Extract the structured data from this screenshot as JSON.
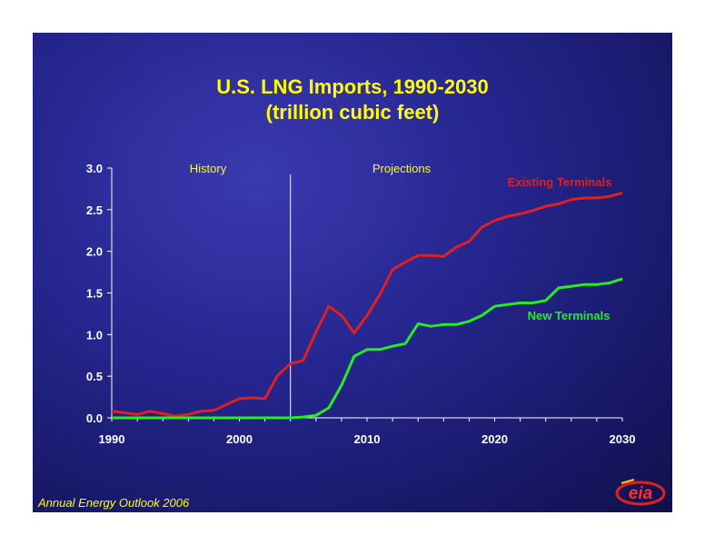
{
  "slide": {
    "title_line1": "U.S. LNG Imports, 1990-2030",
    "title_line2": "(trillion cubic feet)",
    "footer": "Annual Energy Outlook 2006",
    "logo_text": "eia",
    "background_color": "#1f1f7a",
    "title_color": "#ffff00"
  },
  "chart_data": {
    "type": "line",
    "title": "U.S. LNG Imports, 1990-2030",
    "subtitle": "(trillion cubic feet)",
    "xlabel": "",
    "ylabel": "",
    "xlim": [
      1990,
      2030
    ],
    "ylim": [
      0,
      3.0
    ],
    "x_ticks": [
      "1990",
      "2000",
      "2010",
      "2020",
      "2030"
    ],
    "y_ticks": [
      "0.0",
      "0.5",
      "1.0",
      "1.5",
      "2.0",
      "2.5",
      "3.0"
    ],
    "grid": false,
    "divider_year": 2004,
    "region_labels": [
      "History",
      "Projections"
    ],
    "series": [
      {
        "name": "Existing Terminals",
        "color": "#e02020",
        "points": [
          [
            1990,
            0.08
          ],
          [
            1991,
            0.06
          ],
          [
            1992,
            0.04
          ],
          [
            1993,
            0.08
          ],
          [
            1994,
            0.05
          ],
          [
            1995,
            0.02
          ],
          [
            1996,
            0.04
          ],
          [
            1997,
            0.08
          ],
          [
            1998,
            0.09
          ],
          [
            1999,
            0.16
          ],
          [
            2000,
            0.23
          ],
          [
            2001,
            0.24
          ],
          [
            2002,
            0.23
          ],
          [
            2003,
            0.51
          ],
          [
            2004,
            0.65
          ],
          [
            2005,
            0.69
          ],
          [
            2006,
            1.03
          ],
          [
            2007,
            1.34
          ],
          [
            2008,
            1.23
          ],
          [
            2009,
            1.02
          ],
          [
            2010,
            1.23
          ],
          [
            2011,
            1.48
          ],
          [
            2012,
            1.78
          ],
          [
            2013,
            1.87
          ],
          [
            2014,
            1.95
          ],
          [
            2015,
            1.95
          ],
          [
            2016,
            1.94
          ],
          [
            2017,
            2.05
          ],
          [
            2018,
            2.12
          ],
          [
            2019,
            2.29
          ],
          [
            2020,
            2.37
          ],
          [
            2021,
            2.42
          ],
          [
            2022,
            2.45
          ],
          [
            2023,
            2.49
          ],
          [
            2024,
            2.54
          ],
          [
            2025,
            2.57
          ],
          [
            2026,
            2.62
          ],
          [
            2027,
            2.64
          ],
          [
            2028,
            2.64
          ],
          [
            2029,
            2.66
          ],
          [
            2030,
            2.7
          ]
        ]
      },
      {
        "name": "New Terminals",
        "color": "#22ee22",
        "points": [
          [
            1990,
            0.0
          ],
          [
            2004,
            0.0
          ],
          [
            2005,
            0.01
          ],
          [
            2006,
            0.03
          ],
          [
            2007,
            0.12
          ],
          [
            2008,
            0.39
          ],
          [
            2009,
            0.74
          ],
          [
            2010,
            0.82
          ],
          [
            2011,
            0.82
          ],
          [
            2012,
            0.86
          ],
          [
            2013,
            0.89
          ],
          [
            2014,
            1.13
          ],
          [
            2015,
            1.1
          ],
          [
            2016,
            1.12
          ],
          [
            2017,
            1.12
          ],
          [
            2018,
            1.16
          ],
          [
            2019,
            1.23
          ],
          [
            2020,
            1.34
          ],
          [
            2021,
            1.36
          ],
          [
            2022,
            1.38
          ],
          [
            2023,
            1.38
          ],
          [
            2024,
            1.41
          ],
          [
            2025,
            1.56
          ],
          [
            2026,
            1.58
          ],
          [
            2027,
            1.6
          ],
          [
            2028,
            1.6
          ],
          [
            2029,
            1.62
          ],
          [
            2030,
            1.67
          ]
        ]
      }
    ]
  }
}
